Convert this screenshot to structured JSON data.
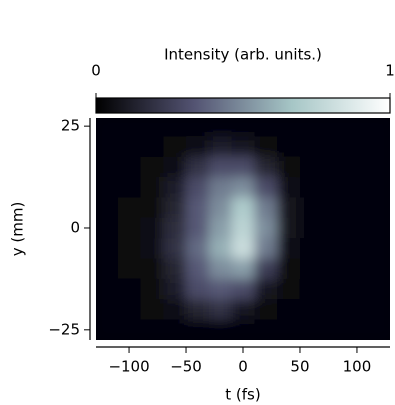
{
  "chart_data": {
    "type": "heatmap",
    "colorbar_label": "Intensity (arb. units.)",
    "clim": [
      0,
      1
    ],
    "cticks": [
      0,
      1
    ],
    "colormap": [
      "#000000",
      "#535372",
      "#a6c6c6",
      "#ffffff"
    ],
    "xlabel": "t (fs)",
    "ylabel": "y (mm)",
    "x": [
      -120,
      -100,
      -80,
      -60,
      -40,
      -20,
      0,
      20,
      40,
      60,
      80,
      100,
      120
    ],
    "y": [
      25,
      20,
      15,
      10,
      5,
      0,
      -5,
      -10,
      -15,
      -20,
      -25
    ],
    "z": [
      [
        0.02,
        0.02,
        0.02,
        0.02,
        0.02,
        0.02,
        0.02,
        0.02,
        0.02,
        0.02,
        0.02,
        0.02,
        0.02
      ],
      [
        0.02,
        0.02,
        0.02,
        0.03,
        0.06,
        0.12,
        0.1,
        0.04,
        0.02,
        0.02,
        0.02,
        0.02,
        0.02
      ],
      [
        0.02,
        0.02,
        0.03,
        0.06,
        0.2,
        0.3,
        0.3,
        0.15,
        0.04,
        0.02,
        0.02,
        0.02,
        0.02
      ],
      [
        0.02,
        0.02,
        0.04,
        0.12,
        0.3,
        0.45,
        0.5,
        0.3,
        0.06,
        0.02,
        0.02,
        0.02,
        0.02
      ],
      [
        0.02,
        0.03,
        0.05,
        0.15,
        0.35,
        0.5,
        0.7,
        0.45,
        0.08,
        0.02,
        0.02,
        0.02,
        0.02
      ],
      [
        0.02,
        0.03,
        0.06,
        0.18,
        0.35,
        0.55,
        0.75,
        0.5,
        0.08,
        0.02,
        0.02,
        0.02,
        0.02
      ],
      [
        0.02,
        0.03,
        0.06,
        0.2,
        0.4,
        0.6,
        0.8,
        0.45,
        0.06,
        0.02,
        0.02,
        0.02,
        0.02
      ],
      [
        0.02,
        0.03,
        0.05,
        0.15,
        0.35,
        0.5,
        0.55,
        0.25,
        0.04,
        0.02,
        0.02,
        0.02,
        0.02
      ],
      [
        0.02,
        0.02,
        0.04,
        0.12,
        0.3,
        0.35,
        0.3,
        0.1,
        0.03,
        0.02,
        0.02,
        0.02,
        0.02
      ],
      [
        0.02,
        0.02,
        0.03,
        0.06,
        0.15,
        0.2,
        0.1,
        0.04,
        0.02,
        0.02,
        0.02,
        0.02,
        0.02
      ],
      [
        0.02,
        0.02,
        0.02,
        0.02,
        0.02,
        0.02,
        0.02,
        0.02,
        0.02,
        0.02,
        0.02,
        0.02,
        0.02
      ]
    ],
    "xlim": [
      -129,
      129
    ],
    "ylim": [
      -27.5,
      27
    ],
    "xticks": [
      {
        "value": -100,
        "label": "−100"
      },
      {
        "value": -50,
        "label": "−50"
      },
      0,
      50,
      100
    ],
    "yticks": [
      {
        "value": -25,
        "label": "−25"
      },
      0,
      25
    ]
  }
}
